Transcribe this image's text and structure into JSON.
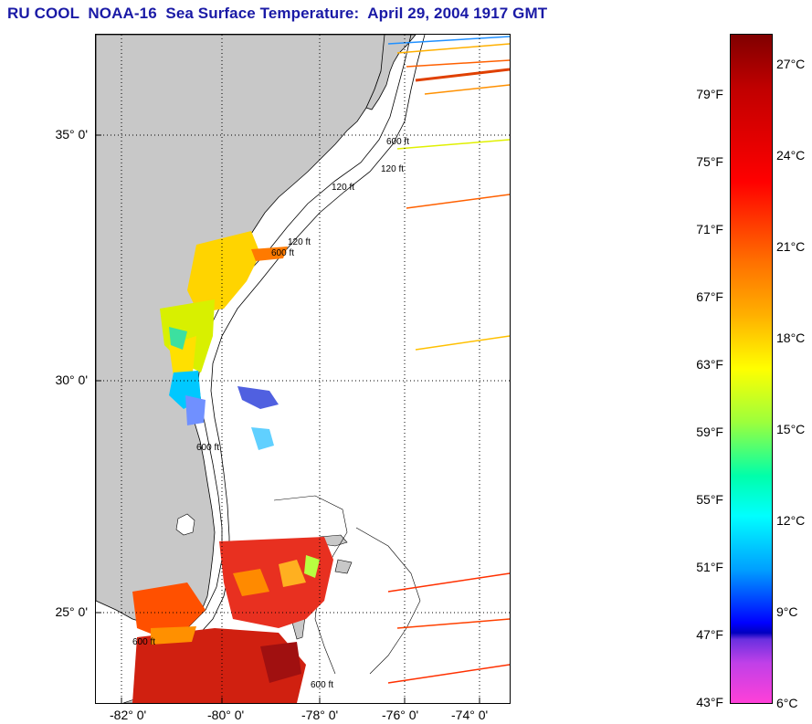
{
  "title": "RU COOL  NOAA-16  Sea Surface Temperature:  April 29, 2004 1917 GMT",
  "map": {
    "latitude_labels": [
      "35° 0'",
      "30° 0'",
      "25° 0'"
    ],
    "longitude_labels": [
      "-82° 0'",
      "-80° 0'",
      "-78° 0'",
      "-76° 0'",
      "-74° 0'"
    ],
    "isobath_labels": [
      "120 ft",
      "600 ft",
      "120 ft",
      "600 ft",
      "120 ft",
      "600 ft",
      "600 ft",
      "600 ft"
    ],
    "colors": {
      "land": "#c8c8c8",
      "water_no_data": "#ffffff",
      "gridline": "#000000"
    }
  },
  "colorbar": {
    "celsius_labels": [
      "27°C",
      "24°C",
      "21°C",
      "18°C",
      "15°C",
      "12°C",
      "9°C",
      "6°C"
    ],
    "fahrenheit_labels": [
      "79°F",
      "75°F",
      "71°F",
      "67°F",
      "63°F",
      "59°F",
      "55°F",
      "51°F",
      "47°F",
      "43°F"
    ]
  }
}
